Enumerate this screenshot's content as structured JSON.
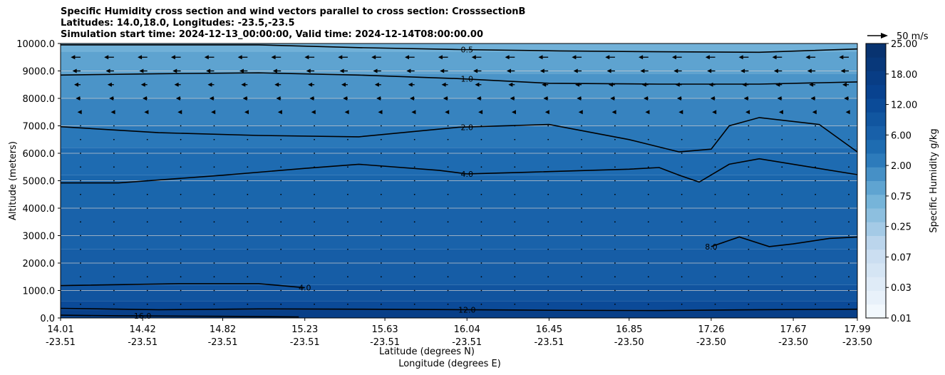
{
  "chart_data": {
    "type": "heatmap",
    "title_lines": [
      "Specific Humidity cross section and wind vectors parallel to cross section: CrosssectionB",
      "Latitudes: 14.0,18.0, Longitudes: -23.5,-23.5",
      "Simulation start time: 2024-12-13_00:00:00, Valid time: 2024-12-14T08:00:00.00"
    ],
    "ylabel": "Altitude (meters)",
    "xlabel_lat": "Latitude (degrees N)",
    "xlabel_lon": "Longitude (degrees E)",
    "ylim": [
      0,
      10000
    ],
    "yticks": [
      "0.0",
      "1000.0",
      "2000.0",
      "3000.0",
      "4000.0",
      "5000.0",
      "6000.0",
      "7000.0",
      "8000.0",
      "9000.0",
      "10000.0"
    ],
    "yticks_values": [
      0,
      1000,
      2000,
      3000,
      4000,
      5000,
      6000,
      7000,
      8000,
      9000,
      10000
    ],
    "xticks": [
      {
        "lat": "14.01",
        "lon": "-23.51"
      },
      {
        "lat": "14.42",
        "lon": "-23.51"
      },
      {
        "lat": "14.82",
        "lon": "-23.51"
      },
      {
        "lat": "15.23",
        "lon": "-23.51"
      },
      {
        "lat": "15.63",
        "lon": "-23.51"
      },
      {
        "lat": "16.04",
        "lon": "-23.51"
      },
      {
        "lat": "16.45",
        "lon": "-23.51"
      },
      {
        "lat": "16.85",
        "lon": "-23.50"
      },
      {
        "lat": "17.26",
        "lon": "-23.50"
      },
      {
        "lat": "17.67",
        "lon": "-23.50"
      },
      {
        "lat": "17.99",
        "lon": "-23.50"
      }
    ],
    "xlim": [
      14.01,
      17.99
    ],
    "humidity_layers_gkg": [
      {
        "alt": 0,
        "q": 16.0
      },
      {
        "alt": 300,
        "q": 12.0
      },
      {
        "alt": 600,
        "q": 9.0
      },
      {
        "alt": 1200,
        "q": 7.0
      },
      {
        "alt": 2500,
        "q": 6.0
      },
      {
        "alt": 4000,
        "q": 5.2
      },
      {
        "alt": 5200,
        "q": 4.0
      },
      {
        "alt": 6200,
        "q": 2.6
      },
      {
        "alt": 7000,
        "q": 2.0
      },
      {
        "alt": 8000,
        "q": 1.4
      },
      {
        "alt": 8900,
        "q": 1.0
      },
      {
        "alt": 9700,
        "q": 0.7
      },
      {
        "alt": 10000,
        "q": 0.5
      }
    ],
    "contours": [
      {
        "label": "0.5",
        "label_lat": 16.04,
        "points": [
          [
            14.01,
            9950
          ],
          [
            14.5,
            9950
          ],
          [
            15.0,
            9950
          ],
          [
            15.5,
            9850
          ],
          [
            16.0,
            9780
          ],
          [
            16.5,
            9730
          ],
          [
            17.0,
            9700
          ],
          [
            17.5,
            9680
          ],
          [
            17.99,
            9800
          ]
        ]
      },
      {
        "label": "1.0",
        "label_lat": 16.04,
        "points": [
          [
            14.01,
            8850
          ],
          [
            14.5,
            8900
          ],
          [
            15.0,
            8930
          ],
          [
            15.5,
            8850
          ],
          [
            16.0,
            8720
          ],
          [
            16.45,
            8550
          ],
          [
            17.0,
            8520
          ],
          [
            17.5,
            8520
          ],
          [
            17.99,
            8600
          ]
        ]
      },
      {
        "label": "2.0",
        "label_lat": 16.04,
        "points": [
          [
            14.01,
            6970
          ],
          [
            14.5,
            6750
          ],
          [
            15.0,
            6650
          ],
          [
            15.5,
            6600
          ],
          [
            16.0,
            6950
          ],
          [
            16.45,
            7050
          ],
          [
            16.85,
            6500
          ],
          [
            17.1,
            6050
          ],
          [
            17.26,
            6150
          ],
          [
            17.35,
            7000
          ],
          [
            17.5,
            7300
          ],
          [
            17.8,
            7050
          ],
          [
            17.99,
            6050
          ]
        ]
      },
      {
        "label": "4.0",
        "label_lat": 16.04,
        "points": [
          [
            14.01,
            4920
          ],
          [
            14.3,
            4920
          ],
          [
            14.82,
            5200
          ],
          [
            15.23,
            5450
          ],
          [
            15.5,
            5600
          ],
          [
            15.9,
            5380
          ],
          [
            16.04,
            5250
          ],
          [
            16.3,
            5300
          ],
          [
            16.85,
            5420
          ],
          [
            17.0,
            5480
          ],
          [
            17.1,
            5200
          ],
          [
            17.2,
            4950
          ],
          [
            17.35,
            5600
          ],
          [
            17.5,
            5800
          ],
          [
            17.99,
            5220
          ]
        ]
      },
      {
        "label": "8.0",
        "label_lat": 17.26,
        "points": [
          [
            17.26,
            2600
          ],
          [
            17.4,
            2950
          ],
          [
            17.55,
            2600
          ],
          [
            17.67,
            2700
          ],
          [
            17.85,
            2900
          ],
          [
            17.99,
            2950
          ]
        ]
      },
      {
        "label": "4.0",
        "label_lat": 15.23,
        "points": [
          [
            14.01,
            1180
          ],
          [
            14.6,
            1250
          ],
          [
            15.0,
            1250
          ],
          [
            15.23,
            1100
          ]
        ]
      },
      {
        "label": "12.0",
        "label_lat": 16.04,
        "points": [
          [
            14.01,
            350
          ],
          [
            14.5,
            300
          ],
          [
            15.0,
            330
          ],
          [
            15.5,
            320
          ],
          [
            16.04,
            300
          ],
          [
            16.5,
            280
          ],
          [
            17.0,
            270
          ],
          [
            17.5,
            300
          ],
          [
            17.99,
            320
          ]
        ]
      },
      {
        "label": "16.0",
        "label_lat": 14.42,
        "points": [
          [
            14.01,
            100
          ],
          [
            14.3,
            80
          ],
          [
            14.82,
            60
          ],
          [
            15.2,
            40
          ]
        ]
      }
    ],
    "colorbar": {
      "label": "Specific Humidity g/kg",
      "ticks": [
        "0.01",
        "0.03",
        "0.07",
        "0.25",
        "0.75",
        "2.00",
        "6.00",
        "12.00",
        "18.00",
        "25.00"
      ],
      "levels": 20
    },
    "wind_key": "50 m/s",
    "grid": true
  }
}
